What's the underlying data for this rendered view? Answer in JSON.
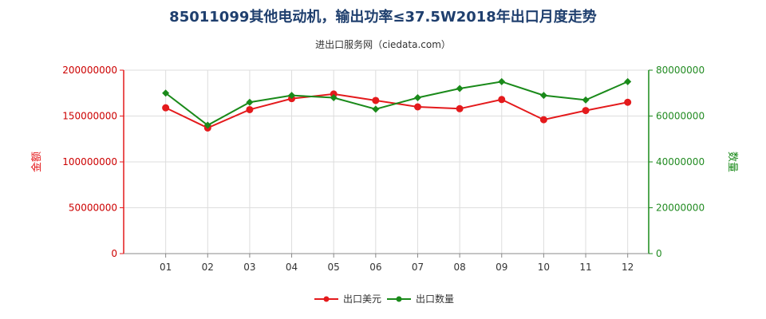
{
  "chart_data": {
    "type": "line",
    "title": "85011099其他电动机，输出功率≤37.5W2018年出口月度走势",
    "subtitle": "进出口服务网（ciedata.com）",
    "categories": [
      "01",
      "02",
      "03",
      "04",
      "05",
      "06",
      "07",
      "08",
      "09",
      "10",
      "11",
      "12"
    ],
    "y_left": {
      "label": "金额",
      "ylim": [
        0,
        200000000
      ],
      "ticks": [
        "0",
        "50000000",
        "100000000",
        "150000000",
        "200000000"
      ],
      "color": "#e41a1c"
    },
    "y_right": {
      "label": "数量",
      "ylim": [
        0,
        80000000
      ],
      "ticks": [
        "0",
        "20000000",
        "40000000",
        "60000000",
        "80000000"
      ],
      "color": "#1a8a1a"
    },
    "series": [
      {
        "name": "出口美元",
        "axis": "left",
        "color": "#e41a1c",
        "values": [
          159000000,
          137000000,
          157000000,
          169000000,
          174000000,
          167000000,
          160000000,
          158000000,
          168000000,
          146000000,
          156000000,
          165000000
        ]
      },
      {
        "name": "出口数量",
        "axis": "right",
        "color": "#1a8a1a",
        "values": [
          70000000,
          56000000,
          66000000,
          69000000,
          68000000,
          63000000,
          68000000,
          72000000,
          75000000,
          69000000,
          67000000,
          75000000
        ]
      }
    ],
    "grid": true,
    "legend_position": "bottom"
  }
}
